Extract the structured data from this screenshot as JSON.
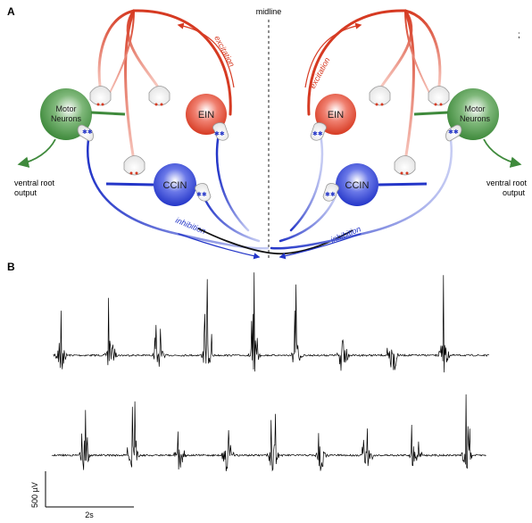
{
  "panels": {
    "a_label": "A",
    "b_label": "B"
  },
  "diagram": {
    "midline": "midline",
    "left": {
      "motor": [
        "Motor",
        "Neurons"
      ],
      "ein": "EIN",
      "ccin": "CCIN",
      "excitation": "excitation",
      "inhibition": "inhibition",
      "output": [
        "ventral root",
        "output"
      ]
    },
    "right": {
      "motor": [
        "Motor",
        "Neurons"
      ],
      "ein": "EIN",
      "ccin": "CCIN",
      "excitation": "excitation",
      "inhibition": "inhibition",
      "output": [
        "ventral root",
        "output"
      ]
    },
    "stray_mark": ";"
  },
  "recording": {
    "scale_voltage": "500 µV",
    "scale_time": "2s",
    "trace1_bursts": 9,
    "trace2_bursts": 9
  },
  "colors": {
    "excitatory": "#d63a22",
    "inhibitory": "#2436c8",
    "motor": "#3f8a3c",
    "trace": "#000000"
  }
}
